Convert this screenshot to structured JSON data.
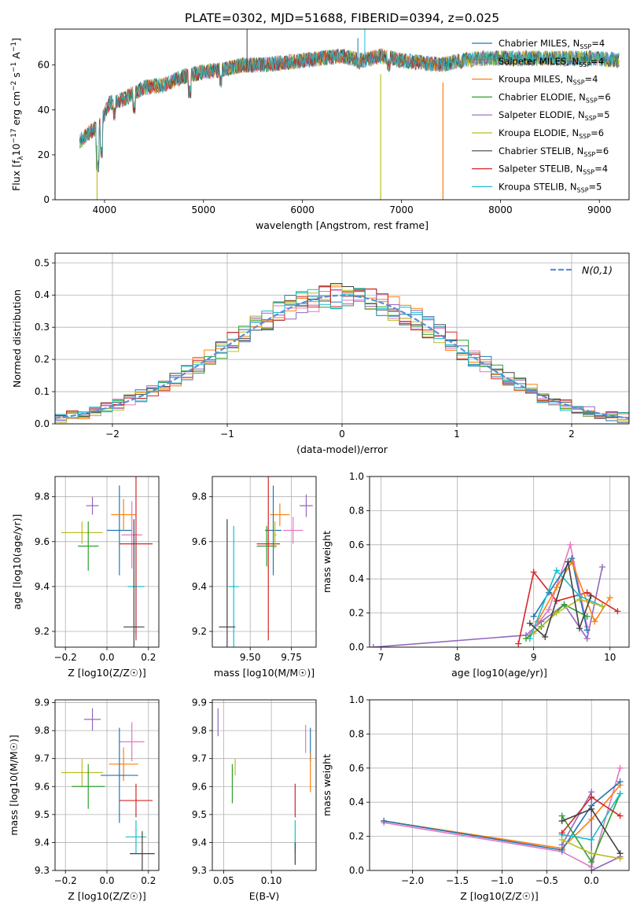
{
  "figure_title": "PLATE=0302, MJD=51688, FIBERID=0394, z=0.025",
  "colors": {
    "chabrier_miles": "#1f77b4",
    "salpeter_miles": "#e377c2",
    "kroupa_miles": "#ff7f0e",
    "chabrier_elodie": "#2ca02c",
    "salpeter_elodie": "#9467bd",
    "kroupa_elodie": "#bcbd22",
    "chabrier_stelib": "#404040",
    "salpeter_stelib": "#d62728",
    "kroupa_stelib": "#17becf"
  },
  "chart_data": [
    {
      "id": "spectrum",
      "type": "line",
      "xlabel": "wavelength [Angstrom, rest frame]",
      "ylabel": "Flux [f_λ 10^-17 erg cm^-2 s^-1 A^-1]",
      "xlim": [
        3500,
        9300
      ],
      "ylim": [
        0,
        76
      ],
      "xticks": [
        4000,
        5000,
        6000,
        7000,
        8000,
        9000
      ],
      "yticks": [
        0,
        20,
        40,
        60
      ],
      "legend_position": "right",
      "legend": [
        {
          "label": "Chabrier MILES, N",
          "sub": "SSP",
          "tail": "=4",
          "color": "#1f77b4"
        },
        {
          "label": "Salpeter MILES, N",
          "sub": "SSP",
          "tail": "=4",
          "color": "#e377c2"
        },
        {
          "label": "Kroupa MILES, N",
          "sub": "SSP",
          "tail": "=4",
          "color": "#ff7f0e"
        },
        {
          "label": "Chabrier ELODIE, N",
          "sub": "SSP",
          "tail": "=6",
          "color": "#2ca02c"
        },
        {
          "label": "Salpeter ELODIE, N",
          "sub": "SSP",
          "tail": "=5",
          "color": "#9467bd"
        },
        {
          "label": "Kroupa ELODIE, N",
          "sub": "SSP",
          "tail": "=6",
          "color": "#bcbd22"
        },
        {
          "label": "Chabrier STELIB, N",
          "sub": "SSP",
          "tail": "=6",
          "color": "#404040"
        },
        {
          "label": "Salpeter STELIB, N",
          "sub": "SSP",
          "tail": "=4",
          "color": "#d62728"
        },
        {
          "label": "Kroupa STELIB, N",
          "sub": "SSP",
          "tail": "=5",
          "color": "#17becf"
        }
      ],
      "continuum": [
        [
          3750,
          26
        ],
        [
          3850,
          30
        ],
        [
          3950,
          33
        ],
        [
          4050,
          43
        ],
        [
          4200,
          45
        ],
        [
          4400,
          50
        ],
        [
          4600,
          51
        ],
        [
          4800,
          55
        ],
        [
          5000,
          57
        ],
        [
          5200,
          58
        ],
        [
          5400,
          60
        ],
        [
          5600,
          60
        ],
        [
          5800,
          61
        ],
        [
          6000,
          62
        ],
        [
          6200,
          63
        ],
        [
          6400,
          64
        ],
        [
          6600,
          62
        ],
        [
          6800,
          64
        ],
        [
          7000,
          62
        ],
        [
          7200,
          61
        ],
        [
          7400,
          60
        ],
        [
          7600,
          62
        ],
        [
          7800,
          63
        ],
        [
          8000,
          63
        ],
        [
          8200,
          63
        ],
        [
          8400,
          63
        ],
        [
          8600,
          63
        ],
        [
          8800,
          63
        ],
        [
          9000,
          63
        ],
        [
          9200,
          62
        ]
      ],
      "dips": [
        [
          3930,
          12
        ],
        [
          3970,
          18
        ],
        [
          4100,
          35
        ],
        [
          4300,
          38
        ],
        [
          4861,
          45
        ],
        [
          5175,
          50
        ],
        [
          6563,
          58
        ],
        [
          6870,
          57
        ],
        [
          7600,
          58
        ]
      ],
      "spikes": [
        [
          5440,
          76,
          "#404040"
        ],
        [
          6630,
          76,
          "#17becf"
        ],
        [
          6560,
          72,
          "#1f77b4"
        ]
      ],
      "drops": [
        [
          3925,
          0,
          "#bcbd22"
        ],
        [
          6790,
          0,
          "#bcbd22"
        ],
        [
          7420,
          0,
          "#ff7f0e"
        ]
      ]
    },
    {
      "id": "residuals",
      "type": "histogram",
      "xlabel": "(data-model)/error",
      "ylabel": "Normed distribution",
      "xlim": [
        -2.5,
        2.5
      ],
      "ylim": [
        0,
        0.53
      ],
      "xticks": [
        -2,
        -1,
        0,
        1,
        2
      ],
      "yticks": [
        0.0,
        0.1,
        0.2,
        0.3,
        0.4,
        0.5
      ],
      "grid": true,
      "legend_position": "top-right",
      "legend_label": "N(0,1)",
      "normal_color": "#5a8fd8",
      "bin_width": 0.1
    },
    {
      "id": "age_vs_Z",
      "type": "errorbar",
      "xlabel": "Z [log10(Z/Z☉)]",
      "ylabel": "age [log10(age/yr)]",
      "xlim": [
        -0.25,
        0.25
      ],
      "ylim": [
        9.13,
        9.89
      ],
      "xticks": [
        -0.2,
        0.0,
        0.2
      ],
      "yticks": [
        9.2,
        9.4,
        9.6,
        9.8
      ],
      "grid": true,
      "points": [
        {
          "x": -0.07,
          "y": 9.76,
          "xerr": 0.03,
          "yerr": 0.04,
          "color": "#9467bd"
        },
        {
          "x": -0.12,
          "y": 9.64,
          "xerr": 0.1,
          "yerr": 0.05,
          "color": "#bcbd22"
        },
        {
          "x": -0.09,
          "y": 9.58,
          "xerr": 0.05,
          "yerr": 0.11,
          "color": "#2ca02c"
        },
        {
          "x": 0.06,
          "y": 9.65,
          "xerr": 0.06,
          "yerr": 0.2,
          "color": "#1f77b4"
        },
        {
          "x": 0.08,
          "y": 9.72,
          "xerr": 0.06,
          "yerr": 0.07,
          "color": "#ff7f0e"
        },
        {
          "x": 0.12,
          "y": 9.63,
          "xerr": 0.05,
          "yerr": 0.15,
          "color": "#e377c2"
        },
        {
          "x": 0.14,
          "y": 9.4,
          "xerr": 0.04,
          "yerr": 0.22,
          "color": "#17becf"
        },
        {
          "x": 0.14,
          "y": 9.59,
          "xerr": 0.08,
          "yerr": 0.43,
          "color": "#d62728"
        },
        {
          "x": 0.13,
          "y": 9.22,
          "xerr": 0.05,
          "yerr": 0.48,
          "color": "#404040"
        }
      ]
    },
    {
      "id": "age_vs_mass",
      "type": "errorbar",
      "xlabel": "mass [log10(M/M☉)]",
      "ylabel": "",
      "xlim": [
        9.27,
        9.9
      ],
      "ylim": [
        9.13,
        9.89
      ],
      "xticks": [
        9.5,
        9.75
      ],
      "yticks": [
        9.2,
        9.4,
        9.6,
        9.8
      ],
      "grid": true,
      "points": [
        {
          "x": 9.84,
          "y": 9.76,
          "xerr": 0.04,
          "yerr": 0.05,
          "color": "#9467bd"
        },
        {
          "x": 9.76,
          "y": 9.65,
          "xerr": 0.06,
          "yerr": 0.06,
          "color": "#e377c2"
        },
        {
          "x": 9.68,
          "y": 9.72,
          "xerr": 0.06,
          "yerr": 0.05,
          "color": "#ff7f0e"
        },
        {
          "x": 9.64,
          "y": 9.65,
          "xerr": 0.05,
          "yerr": 0.2,
          "color": "#1f77b4"
        },
        {
          "x": 9.6,
          "y": 9.58,
          "xerr": 0.06,
          "yerr": 0.09,
          "color": "#2ca02c"
        },
        {
          "x": 9.61,
          "y": 9.59,
          "xerr": 0.07,
          "yerr": 0.43,
          "color": "#d62728"
        },
        {
          "x": 9.65,
          "y": 9.63,
          "xerr": 0.01,
          "yerr": 0.06,
          "color": "#bcbd22"
        },
        {
          "x": 9.4,
          "y": 9.4,
          "xerr": 0.03,
          "yerr": 0.27,
          "color": "#17becf"
        },
        {
          "x": 9.36,
          "y": 9.22,
          "xerr": 0.05,
          "yerr": 0.48,
          "color": "#404040"
        }
      ]
    },
    {
      "id": "weight_vs_age",
      "type": "line",
      "xlabel": "age [log10(age/yr)]",
      "ylabel": "mass weight",
      "xlim": [
        6.85,
        10.25
      ],
      "ylim": [
        0,
        1.0
      ],
      "xticks": [
        7,
        8,
        9,
        10
      ],
      "yticks": [
        0.0,
        0.2,
        0.4,
        0.6,
        0.8,
        1.0
      ],
      "grid": true,
      "series": [
        {
          "color": "#9467bd",
          "x": [
            6.9,
            8.9,
            9.1,
            9.4,
            9.7,
            9.9
          ],
          "y": [
            0.0,
            0.07,
            0.15,
            0.25,
            0.05,
            0.47
          ]
        },
        {
          "color": "#d62728",
          "x": [
            8.8,
            9.0,
            9.3,
            9.7,
            10.1
          ],
          "y": [
            0.02,
            0.44,
            0.27,
            0.32,
            0.21
          ]
        },
        {
          "color": "#e377c2",
          "x": [
            8.95,
            9.2,
            9.48,
            9.7
          ],
          "y": [
            0.08,
            0.22,
            0.6,
            0.12
          ]
        },
        {
          "color": "#1f77b4",
          "x": [
            9.0,
            9.2,
            9.5,
            9.7
          ],
          "y": [
            0.18,
            0.32,
            0.52,
            0.1
          ]
        },
        {
          "color": "#ff7f0e",
          "x": [
            9.05,
            9.3,
            9.5,
            9.8,
            10.0
          ],
          "y": [
            0.15,
            0.35,
            0.5,
            0.15,
            0.29
          ]
        },
        {
          "color": "#17becf",
          "x": [
            8.95,
            9.3,
            9.6,
            9.9
          ],
          "y": [
            0.05,
            0.45,
            0.3,
            0.24
          ]
        },
        {
          "color": "#2ca02c",
          "x": [
            8.9,
            9.1,
            9.4,
            9.7
          ],
          "y": [
            0.05,
            0.12,
            0.25,
            0.18
          ]
        },
        {
          "color": "#bcbd22",
          "x": [
            9.0,
            9.3,
            9.6,
            9.9
          ],
          "y": [
            0.08,
            0.2,
            0.28,
            0.24
          ]
        },
        {
          "color": "#404040",
          "x": [
            8.95,
            9.15,
            9.45,
            9.6,
            9.75
          ],
          "y": [
            0.14,
            0.06,
            0.5,
            0.11,
            0.3
          ]
        }
      ]
    },
    {
      "id": "mass_vs_Z",
      "type": "errorbar",
      "xlabel": "Z [log10(Z/Z☉)]",
      "ylabel": "mass [log10(M/M☉)]",
      "xlim": [
        -0.25,
        0.25
      ],
      "ylim": [
        9.3,
        9.91
      ],
      "xticks": [
        -0.2,
        0.0,
        0.2
      ],
      "yticks": [
        9.3,
        9.4,
        9.5,
        9.6,
        9.7,
        9.8,
        9.9
      ],
      "grid": true,
      "points": [
        {
          "x": -0.07,
          "y": 9.84,
          "xerr": 0.04,
          "yerr": 0.04,
          "color": "#9467bd"
        },
        {
          "x": 0.12,
          "y": 9.76,
          "xerr": 0.06,
          "yerr": 0.07,
          "color": "#e377c2"
        },
        {
          "x": 0.08,
          "y": 9.68,
          "xerr": 0.07,
          "yerr": 0.06,
          "color": "#ff7f0e"
        },
        {
          "x": -0.12,
          "y": 9.65,
          "xerr": 0.1,
          "yerr": 0.05,
          "color": "#bcbd22"
        },
        {
          "x": 0.06,
          "y": 9.64,
          "xerr": 0.09,
          "yerr": 0.17,
          "color": "#1f77b4"
        },
        {
          "x": -0.09,
          "y": 9.6,
          "xerr": 0.08,
          "yerr": 0.08,
          "color": "#2ca02c"
        },
        {
          "x": 0.14,
          "y": 9.55,
          "xerr": 0.08,
          "yerr": 0.06,
          "color": "#d62728"
        },
        {
          "x": 0.14,
          "y": 9.42,
          "xerr": 0.05,
          "yerr": 0.06,
          "color": "#17becf"
        },
        {
          "x": 0.17,
          "y": 9.36,
          "xerr": 0.06,
          "yerr": 0.08,
          "color": "#404040"
        }
      ]
    },
    {
      "id": "mass_vs_ebv",
      "type": "errorbar",
      "xlabel": "E(B-V)",
      "ylabel": "",
      "xlim": [
        0.038,
        0.147
      ],
      "ylim": [
        9.3,
        9.91
      ],
      "xticks": [
        0.05,
        0.1
      ],
      "yticks": [
        9.3,
        9.4,
        9.5,
        9.6,
        9.7,
        9.8,
        9.9
      ],
      "grid": true,
      "points": [
        {
          "x": 0.044,
          "y": 9.83,
          "xerr": 0.0,
          "yerr": 0.05,
          "color": "#9467bd"
        },
        {
          "x": 0.136,
          "y": 9.77,
          "xerr": 0.0,
          "yerr": 0.05,
          "color": "#e377c2"
        },
        {
          "x": 0.141,
          "y": 9.75,
          "xerr": 0.0,
          "yerr": 0.06,
          "color": "#1f77b4"
        },
        {
          "x": 0.141,
          "y": 9.65,
          "xerr": 0.0,
          "yerr": 0.07,
          "color": "#ff7f0e"
        },
        {
          "x": 0.062,
          "y": 9.67,
          "xerr": 0.0,
          "yerr": 0.03,
          "color": "#bcbd22"
        },
        {
          "x": 0.059,
          "y": 9.61,
          "xerr": 0.0,
          "yerr": 0.07,
          "color": "#2ca02c"
        },
        {
          "x": 0.125,
          "y": 9.55,
          "xerr": 0.0,
          "yerr": 0.06,
          "color": "#d62728"
        },
        {
          "x": 0.125,
          "y": 9.42,
          "xerr": 0.0,
          "yerr": 0.06,
          "color": "#17becf"
        },
        {
          "x": 0.125,
          "y": 9.36,
          "xerr": 0.0,
          "yerr": 0.04,
          "color": "#404040"
        }
      ]
    },
    {
      "id": "weight_vs_Z",
      "type": "line",
      "xlabel": "Z [log10(Z/Z☉)]",
      "ylabel": "mass weight",
      "xlim": [
        -2.48,
        0.42
      ],
      "ylim": [
        0,
        1.0
      ],
      "xticks": [
        -2.0,
        -1.5,
        -1.0,
        -0.5,
        0.0
      ],
      "yticks": [
        0.0,
        0.2,
        0.4,
        0.6,
        0.8,
        1.0
      ],
      "grid": true,
      "series": [
        {
          "color": "#e377c2",
          "x": [
            -2.32,
            -0.33,
            0.0,
            0.32
          ],
          "y": [
            0.28,
            0.11,
            0.02,
            0.6
          ]
        },
        {
          "color": "#ff7f0e",
          "x": [
            -2.32,
            -0.33,
            0.0,
            0.32
          ],
          "y": [
            0.29,
            0.13,
            0.3,
            0.5
          ]
        },
        {
          "color": "#1f77b4",
          "x": [
            -2.32,
            -0.33,
            0.0,
            0.32
          ],
          "y": [
            0.29,
            0.12,
            0.38,
            0.52
          ]
        },
        {
          "color": "#9467bd",
          "x": [
            -0.33,
            0.0,
            0.0,
            0.32
          ],
          "y": [
            0.15,
            0.46,
            0.0,
            0.08
          ]
        },
        {
          "color": "#2ca02c",
          "x": [
            -0.33,
            0.0,
            0.32
          ],
          "y": [
            0.32,
            0.05,
            0.45
          ]
        },
        {
          "color": "#bcbd22",
          "x": [
            -0.33,
            0.0,
            0.32
          ],
          "y": [
            0.18,
            0.1,
            0.07
          ]
        },
        {
          "color": "#17becf",
          "x": [
            -0.33,
            0.0,
            0.32
          ],
          "y": [
            0.21,
            0.18,
            0.45
          ]
        },
        {
          "color": "#d62728",
          "x": [
            -0.33,
            0.0,
            0.32
          ],
          "y": [
            0.22,
            0.43,
            0.32
          ]
        },
        {
          "color": "#404040",
          "x": [
            -0.33,
            0.0,
            0.32
          ],
          "y": [
            0.29,
            0.36,
            0.1
          ]
        }
      ]
    }
  ]
}
